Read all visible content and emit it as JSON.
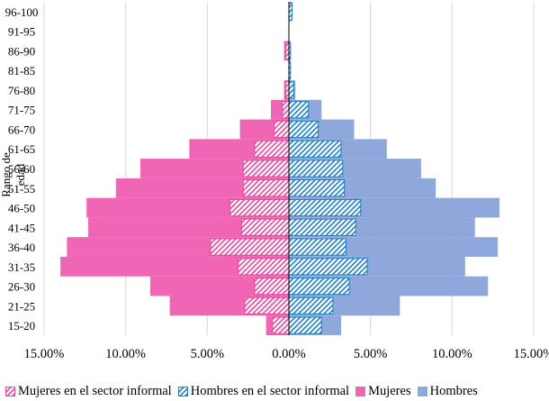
{
  "chart_data": {
    "type": "bar",
    "orientation": "horizontal-diverging",
    "title": "",
    "ylabel": "Rango de edad",
    "xlabel": "",
    "xlim": [
      -15,
      15
    ],
    "x_tick_labels": [
      "15.00%",
      "10.00%",
      "5.00%",
      "0.00%",
      "5.00%",
      "10.00%",
      "15.00%"
    ],
    "categories": [
      "15-20",
      "21-25",
      "26-30",
      "31-35",
      "36-40",
      "41-45",
      "46-50",
      "51-55",
      "56-60",
      "61-65",
      "66-70",
      "71-75",
      "76-80",
      "81-85",
      "86-90",
      "91-95",
      "96-100"
    ],
    "series": [
      {
        "name": "Mujeres",
        "side": "left",
        "color": "#f065b4",
        "values": [
          1.4,
          7.3,
          8.5,
          14.0,
          13.6,
          12.3,
          12.4,
          10.6,
          9.1,
          6.1,
          3.0,
          1.1,
          0.3,
          0.0,
          0.3,
          0.0,
          0.0
        ]
      },
      {
        "name": "Hombres",
        "side": "right",
        "color": "#8ea8db",
        "values": [
          3.2,
          6.8,
          12.2,
          10.8,
          12.8,
          11.4,
          12.9,
          9.0,
          8.1,
          6.0,
          4.0,
          2.0,
          0.4,
          0.1,
          0.1,
          0.0,
          0.2
        ]
      },
      {
        "name": "Mujeres en el sector informal",
        "side": "left",
        "color": "#f065b4",
        "pattern": "hatch",
        "values": [
          1.0,
          2.7,
          2.1,
          3.1,
          4.8,
          2.9,
          3.6,
          2.8,
          2.8,
          2.1,
          0.9,
          0.4,
          0.2,
          0.0,
          0.2,
          0.0,
          0.0
        ]
      },
      {
        "name": "Hombres en el sector informal",
        "side": "right",
        "color": "#2e8fcd",
        "pattern": "hatch",
        "values": [
          2.0,
          2.7,
          3.7,
          4.8,
          3.5,
          4.1,
          4.4,
          3.4,
          3.3,
          3.2,
          1.8,
          1.2,
          0.3,
          0.1,
          0.1,
          0.0,
          0.2
        ]
      }
    ],
    "legend_position": "bottom"
  },
  "legend": {
    "items": [
      {
        "label": "Mujeres en el sector informal"
      },
      {
        "label": "Hombres en el sector informal"
      },
      {
        "label": "Mujeres"
      },
      {
        "label": "Hombres"
      }
    ]
  }
}
